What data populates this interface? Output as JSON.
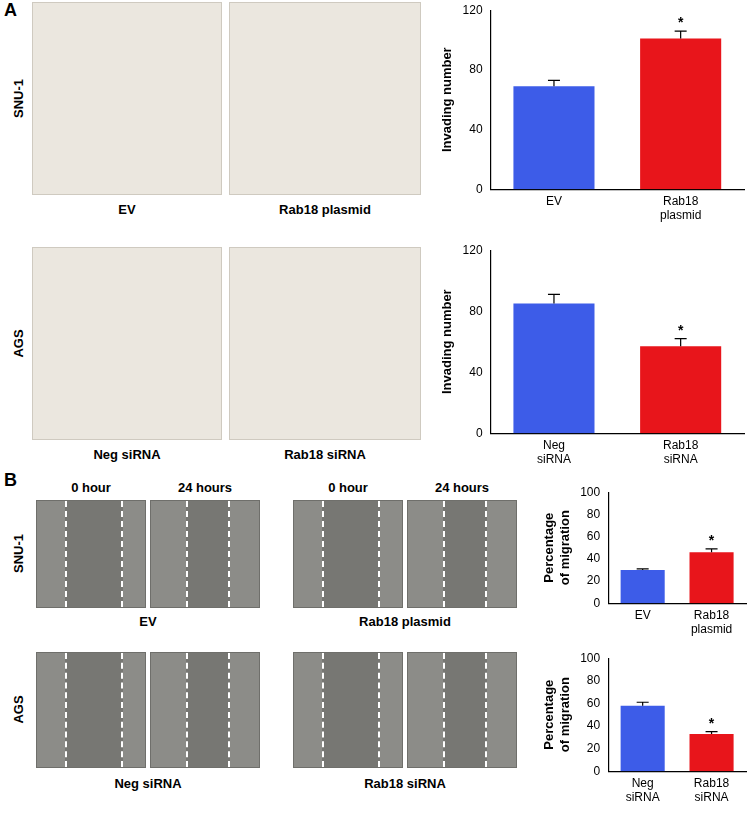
{
  "panels": [
    {
      "label": "A",
      "rows": [
        {
          "cell_line": "SNU-1",
          "images": [
            {
              "caption": "EV"
            },
            {
              "caption": "Rab18 plasmid"
            }
          ]
        },
        {
          "cell_line": "AGS",
          "images": [
            {
              "caption": "Neg siRNA"
            },
            {
              "caption": "Rab18 siRNA"
            }
          ]
        }
      ]
    },
    {
      "label": "B",
      "time_labels": [
        "0 hour",
        "24 hours"
      ],
      "rows": [
        {
          "cell_line": "SNU-1",
          "images": [
            {
              "caption": "EV"
            },
            {
              "caption": "Rab18 plasmid"
            }
          ]
        },
        {
          "cell_line": "AGS",
          "images": [
            {
              "caption": "Neg siRNA"
            },
            {
              "caption": "Rab18 siRNA"
            }
          ]
        }
      ]
    }
  ],
  "chart_data": [
    {
      "type": "bar",
      "y_label": "Invading number",
      "categories": [
        "EV",
        "Rab18 plasmid"
      ],
      "values": [
        69,
        101
      ],
      "errors": [
        4,
        5
      ],
      "colors": [
        "#3d5ce8",
        "#e8151b"
      ],
      "ylim": [
        0,
        120
      ],
      "yticks": [
        0,
        40,
        80,
        120
      ],
      "grid": false,
      "annotations": [
        {
          "category": "Rab18 plasmid",
          "text": "*"
        }
      ]
    },
    {
      "type": "bar",
      "y_label": "Invading number",
      "categories": [
        "Neg siRNA",
        "Rab18 siRNA"
      ],
      "values": [
        85,
        57
      ],
      "errors": [
        6,
        5
      ],
      "colors": [
        "#3d5ce8",
        "#e8151b"
      ],
      "ylim": [
        0,
        120
      ],
      "yticks": [
        0,
        40,
        80,
        120
      ],
      "grid": false,
      "annotations": [
        {
          "category": "Rab18 siRNA",
          "text": "*"
        }
      ]
    },
    {
      "type": "bar",
      "y_label": "Percentage of migration",
      "categories": [
        "EV",
        "Rab18 plasmid"
      ],
      "values": [
        30,
        46
      ],
      "errors": [
        1,
        3
      ],
      "colors": [
        "#3d5ce8",
        "#e8151b"
      ],
      "ylim": [
        0,
        100
      ],
      "yticks": [
        0,
        20,
        40,
        60,
        80,
        100
      ],
      "grid": false,
      "annotations": [
        {
          "category": "Rab18 plasmid",
          "text": "*"
        }
      ]
    },
    {
      "type": "bar",
      "y_label": "Percentage of migration",
      "categories": [
        "Neg siRNA",
        "Rab18 siRNA"
      ],
      "values": [
        58,
        33
      ],
      "errors": [
        3,
        2
      ],
      "colors": [
        "#3d5ce8",
        "#e8151b"
      ],
      "ylim": [
        0,
        100
      ],
      "yticks": [
        0,
        20,
        40,
        60,
        80,
        100
      ],
      "grid": false,
      "annotations": [
        {
          "category": "Rab18 siRNA",
          "text": "*"
        }
      ]
    }
  ]
}
